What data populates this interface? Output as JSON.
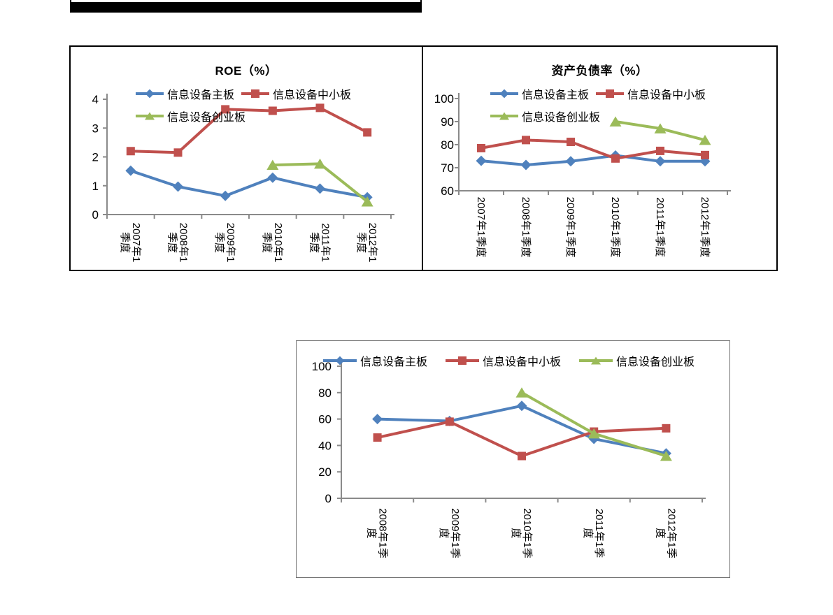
{
  "decorations": {
    "top_bar_color": "#000000",
    "figure_border_color": "#000000",
    "bottom_figure_border_color": "#6e6e6e"
  },
  "colors": {
    "axis": "#8a8a8a",
    "tick_label": "#000000",
    "series_blue": "#4f81bd",
    "series_red": "#c0504d",
    "series_green": "#9bbb59"
  },
  "chart_data": [
    {
      "id": "roe",
      "type": "line",
      "title": "ROE（%）",
      "categories": [
        "2007年1季度",
        "2008年1季度",
        "2009年1季度",
        "2010年1季度",
        "2011年1季度",
        "2012年1季度"
      ],
      "x_tick_lines": [
        [
          "2007年1",
          "季度"
        ],
        [
          "2008年1",
          "季度"
        ],
        [
          "2009年1",
          "季度"
        ],
        [
          "2010年1",
          "季度"
        ],
        [
          "2011年1",
          "季度"
        ],
        [
          "2012年1",
          "季度"
        ]
      ],
      "ylim": [
        0,
        4
      ],
      "yticks": [
        0,
        1,
        2,
        3,
        4
      ],
      "grid": false,
      "legend_position": "inside-top-left-two-rows",
      "series": [
        {
          "name": "信息设备主板",
          "color": "#4f81bd",
          "marker": "diamond",
          "values": [
            1.52,
            0.97,
            0.65,
            1.28,
            0.9,
            0.6
          ]
        },
        {
          "name": "信息设备中小板",
          "color": "#c0504d",
          "marker": "square",
          "values": [
            2.2,
            2.15,
            3.65,
            3.6,
            3.7,
            2.85
          ]
        },
        {
          "name": "信息设备创业板",
          "color": "#9bbb59",
          "marker": "triangle",
          "values": [
            null,
            null,
            null,
            1.72,
            1.76,
            0.45
          ]
        }
      ]
    },
    {
      "id": "debt",
      "type": "line",
      "title": "资产负债率（%）",
      "categories": [
        "2007年1季度",
        "2008年1季度",
        "2009年1季度",
        "2010年1季度",
        "2011年1季度",
        "2012年1季度"
      ],
      "x_tick_lines": [
        [
          "2007年1季度"
        ],
        [
          "2008年1季度"
        ],
        [
          "2009年1季度"
        ],
        [
          "2010年1季度"
        ],
        [
          "2011年1季度"
        ],
        [
          "2012年1季度"
        ]
      ],
      "ylim": [
        60,
        100
      ],
      "yticks": [
        60,
        70,
        80,
        90,
        100
      ],
      "grid": false,
      "legend_position": "inside-top-left-two-rows",
      "series": [
        {
          "name": "信息设备主板",
          "color": "#4f81bd",
          "marker": "diamond",
          "values": [
            73,
            71.2,
            72.8,
            75.3,
            72.8,
            72.8
          ]
        },
        {
          "name": "信息设备中小板",
          "color": "#c0504d",
          "marker": "square",
          "values": [
            78.5,
            82,
            81.2,
            74,
            77.3,
            75.5
          ]
        },
        {
          "name": "信息设备创业板",
          "color": "#9bbb59",
          "marker": "triangle",
          "values": [
            null,
            null,
            null,
            90,
            87,
            82
          ]
        }
      ]
    },
    {
      "id": "val",
      "type": "line",
      "title": "",
      "categories": [
        "2008年1季度",
        "2009年1季度",
        "2010年1季度",
        "2011年1季度",
        "2012年1季度"
      ],
      "x_tick_lines": [
        [
          "2008年1季",
          "度"
        ],
        [
          "2009年1季",
          "度"
        ],
        [
          "2010年1季",
          "度"
        ],
        [
          "2011年1季",
          "度"
        ],
        [
          "2012年1季",
          "度"
        ]
      ],
      "ylim": [
        0,
        100
      ],
      "yticks": [
        0,
        20,
        40,
        60,
        80,
        100
      ],
      "grid": false,
      "legend_position": "inside-top-one-row",
      "series": [
        {
          "name": "信息设备主板",
          "color": "#4f81bd",
          "marker": "diamond",
          "values": [
            60,
            58.5,
            70,
            45,
            34
          ]
        },
        {
          "name": "信息设备中小板",
          "color": "#c0504d",
          "marker": "square",
          "values": [
            46,
            58,
            32,
            50.5,
            53
          ]
        },
        {
          "name": "信息设备创业板",
          "color": "#9bbb59",
          "marker": "triangle",
          "values": [
            null,
            null,
            80,
            49,
            32
          ]
        }
      ]
    }
  ]
}
